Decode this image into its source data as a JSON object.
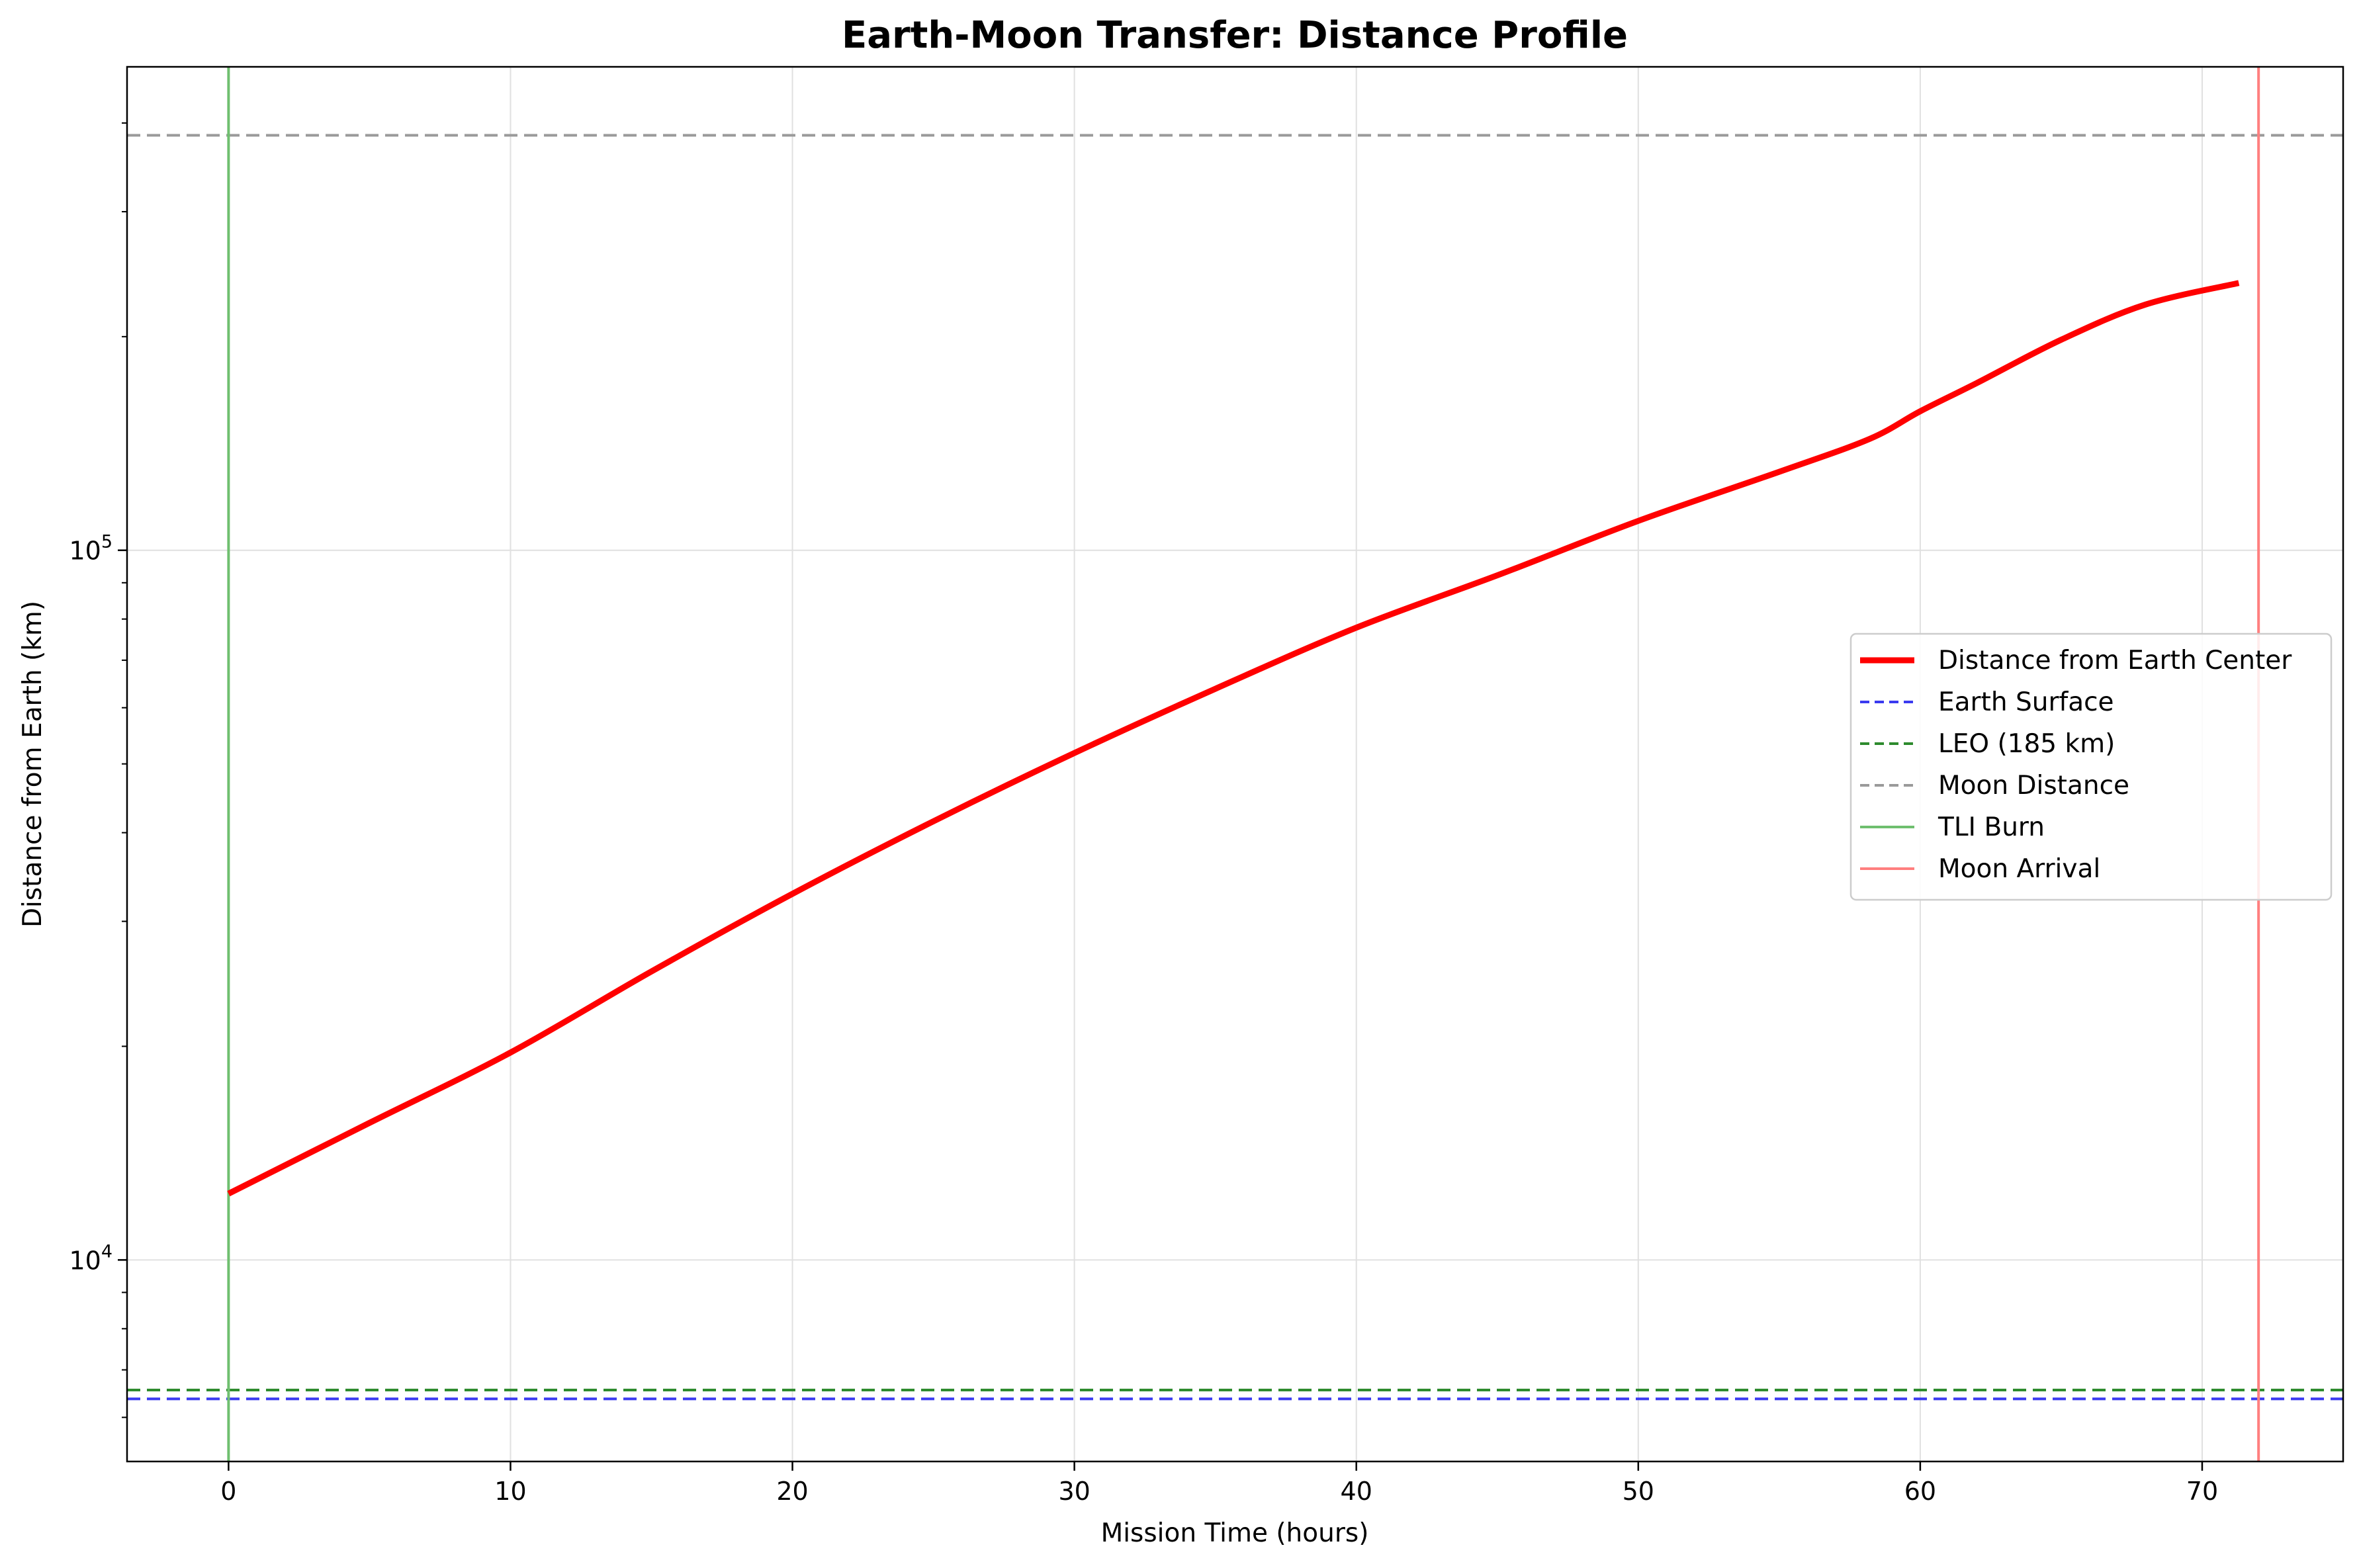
{
  "chart_data": {
    "type": "line",
    "title": "Earth-Moon Transfer: Distance Profile",
    "xlabel": "Mission Time (hours)",
    "ylabel": "Distance from Earth (km)",
    "yscale": "log",
    "xlim": [
      -3.6,
      75
    ],
    "ylim": [
      5200,
      480000
    ],
    "grid": true,
    "xticks": [
      0,
      10,
      20,
      30,
      40,
      50,
      60,
      70
    ],
    "yticks": [
      {
        "value": 10000,
        "base": "10",
        "exp": "4"
      },
      {
        "value": 100000,
        "base": "10",
        "exp": "5"
      }
    ],
    "legend_position": "center-right",
    "series": [
      {
        "name": "Distance from Earth Center",
        "style": "solid",
        "color": "#ff0000",
        "x": [
          0,
          5,
          10,
          15,
          20,
          25,
          30,
          35,
          40,
          45,
          50,
          55,
          58.2,
          60,
          62,
          65,
          68,
          71.3
        ],
        "y": [
          12400,
          15600,
          19600,
          25500,
          32800,
          41500,
          51800,
          63800,
          77800,
          92200,
          110000,
          129000,
          143500,
          157000,
          172000,
          198000,
          222000,
          238000
        ]
      }
    ],
    "reference_lines": [
      {
        "name": "Earth Surface",
        "orientation": "horizontal",
        "value": 6371,
        "style": "dashed",
        "color": "#3a3af0"
      },
      {
        "name": "LEO (185 km)",
        "orientation": "horizontal",
        "value": 6556,
        "style": "dashed",
        "color": "#2e8b2e"
      },
      {
        "name": "Moon Distance",
        "orientation": "horizontal",
        "value": 384400,
        "style": "dashed",
        "color": "#9a9a9a"
      },
      {
        "name": "TLI Burn",
        "orientation": "vertical",
        "value": 0,
        "style": "solid",
        "color": "#6fbf6f"
      },
      {
        "name": "Moon Arrival",
        "orientation": "vertical",
        "value": 72,
        "style": "solid",
        "color": "#ff7f7f"
      }
    ]
  }
}
